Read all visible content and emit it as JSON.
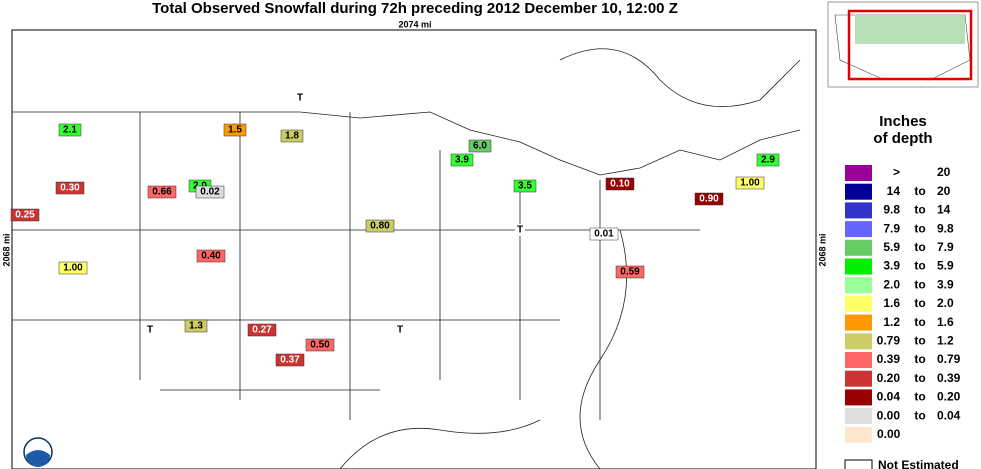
{
  "header": {
    "title": "Total Observed Snowfall during 72h preceding 2012 December 10, 12:00 Z",
    "width_label": "2074 mi",
    "height_label": "2068 mi"
  },
  "stations": [
    {
      "label": "0.01",
      "color": "#ffffff"
    },
    {
      "label": "0.59",
      "color": "#ff6666"
    },
    {
      "label": "1.00",
      "color": "#ffff66"
    },
    {
      "label": "2.0",
      "color": "#33ff33"
    },
    {
      "label": "0.90",
      "color": "#990000"
    },
    {
      "label": "0.30",
      "color": "#cc3333"
    },
    {
      "label": "1.8",
      "color": "#cccc66"
    },
    {
      "label": "3.9",
      "color": "#33ff33"
    },
    {
      "label": "0.40",
      "color": "#ff6666"
    },
    {
      "label": "0.02",
      "color": "#dddddd"
    },
    {
      "label": "1.5",
      "color": "#ff9900"
    },
    {
      "label": "6.0",
      "color": "#66cc66"
    },
    {
      "label": "2.1",
      "color": "#33ff33"
    },
    {
      "label": "0.25",
      "color": "#cc3333"
    },
    {
      "label": "0.50",
      "color": "#ff6666"
    },
    {
      "label": "1.3",
      "color": "#cccc66"
    },
    {
      "label": "3.5",
      "color": "#33ff33"
    },
    {
      "label": "0.80",
      "color": "#cccc66"
    },
    {
      "label": "0.37",
      "color": "#cc3333"
    },
    {
      "label": "0.27",
      "color": "#cc3333"
    },
    {
      "label": "1.00",
      "color": "#ffff66"
    },
    {
      "label": "0.10",
      "color": "#990000"
    },
    {
      "label": "0.66",
      "color": "#ff6666"
    },
    {
      "label": "2.9",
      "color": "#33ff33"
    },
    {
      "label": "T",
      "color": "#ffffff"
    },
    {
      "label": "T",
      "color": "#ffffff"
    },
    {
      "label": "T",
      "color": "#ffffff"
    },
    {
      "label": "T",
      "color": "#ffffff"
    }
  ],
  "legend": {
    "title_line1": "Inches",
    "title_line2": "of depth",
    "connector": "to",
    "rows": [
      {
        "color": "#990099",
        "from": ">",
        "to": "20"
      },
      {
        "color": "#000099",
        "from": "14",
        "to": "20"
      },
      {
        "color": "#3333cc",
        "from": "9.8",
        "to": "14"
      },
      {
        "color": "#6666ff",
        "from": "7.9",
        "to": "9.8"
      },
      {
        "color": "#66cc66",
        "from": "5.9",
        "to": "7.9"
      },
      {
        "color": "#00ee00",
        "from": "3.9",
        "to": "5.9"
      },
      {
        "color": "#99ff99",
        "from": "2.0",
        "to": "3.9"
      },
      {
        "color": "#ffff66",
        "from": "1.6",
        "to": "2.0"
      },
      {
        "color": "#ff9900",
        "from": "1.2",
        "to": "1.6"
      },
      {
        "color": "#cccc66",
        "from": "0.79",
        "to": "1.2"
      },
      {
        "color": "#ff6666",
        "from": "0.39",
        "to": "0.79"
      },
      {
        "color": "#cc3333",
        "from": "0.20",
        "to": "0.39"
      },
      {
        "color": "#990000",
        "from": "0.04",
        "to": "0.20"
      },
      {
        "color": "#dddddd",
        "from": "0.00",
        "to": "0.04"
      },
      {
        "color": "#ffe6cc",
        "from": "0.00"
      }
    ],
    "not_estimated": "Not Estimated"
  }
}
